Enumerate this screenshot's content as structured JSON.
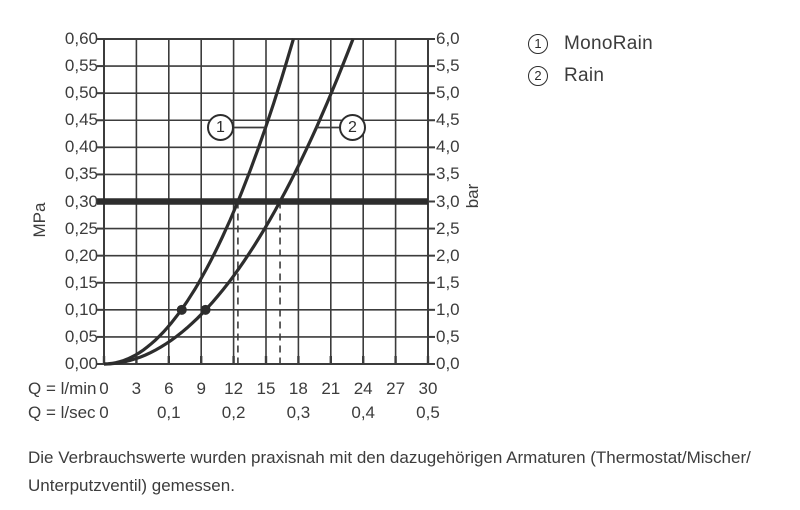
{
  "colors": {
    "ink": "#3c3c3c",
    "curve": "#2d2d2d",
    "background": "#ffffff"
  },
  "figure": {
    "y_left": {
      "title": "MPa",
      "ticks": [
        "0,60",
        "0,55",
        "0,50",
        "0,45",
        "0,40",
        "0,35",
        "0,30",
        "0,25",
        "0,20",
        "0,15",
        "0,10",
        "0,05",
        "0,00"
      ]
    },
    "y_right": {
      "title": "bar",
      "ticks": [
        "6,0",
        "5,5",
        "5,0",
        "4,5",
        "4,0",
        "3,5",
        "3,0",
        "2,5",
        "2,0",
        "1,5",
        "1,0",
        "0,5",
        "0,0"
      ]
    },
    "x_lmin": {
      "title": "Q = l/min",
      "ticks": [
        "0",
        "3",
        "6",
        "9",
        "12",
        "15",
        "18",
        "21",
        "24",
        "27",
        "30"
      ]
    },
    "x_lsec": {
      "title": "Q = l/sec",
      "ticks": [
        "0",
        "0,1",
        "0,2",
        "0,3",
        "0,4",
        "0,5"
      ]
    },
    "legend": [
      {
        "num": "1",
        "label": "MonoRain"
      },
      {
        "num": "2",
        "label": "Rain"
      }
    ],
    "curve_labels": [
      {
        "num": "1"
      },
      {
        "num": "2"
      }
    ],
    "caption_line1": "Die Verbrauchswerte wurden praxisnah mit den dazugehörigen Armaturen (Thermostat/Mischer/",
    "caption_line2": "Unterputzventil) gemessen."
  },
  "chart_data": {
    "type": "line",
    "title": "",
    "x_axis": {
      "label": "Q = l/min",
      "range": [
        0,
        30
      ],
      "ticks": [
        0,
        3,
        6,
        9,
        12,
        15,
        18,
        21,
        24,
        27,
        30
      ],
      "secondary_label": "Q = l/sec",
      "secondary_ticks": [
        0,
        0.1,
        0.2,
        0.3,
        0.4,
        0.5
      ]
    },
    "y_axis_left": {
      "label": "MPa",
      "range": [
        0,
        0.6
      ],
      "tick_step": 0.05
    },
    "y_axis_right": {
      "label": "bar",
      "range": [
        0,
        6
      ],
      "tick_step": 0.5
    },
    "grid": true,
    "legend_position": "top-right",
    "reference_pressure_mpa": 0.3,
    "dashed_guides_at_lmin": [
      12.4,
      16.3
    ],
    "series": [
      {
        "id": 1,
        "name": "MonoRain",
        "flow_at_3bar_lmin": 12.4,
        "marker": {
          "q_lmin": 7.2,
          "mpa": 0.1
        },
        "points_q_lmin_vs_mpa": [
          [
            0,
            0
          ],
          [
            3,
            0.018
          ],
          [
            6,
            0.07
          ],
          [
            7.2,
            0.1
          ],
          [
            9,
            0.158
          ],
          [
            12,
            0.281
          ],
          [
            12.4,
            0.3
          ],
          [
            15,
            0.439
          ],
          [
            17.5,
            0.6
          ]
        ]
      },
      {
        "id": 2,
        "name": "Rain",
        "flow_at_3bar_lmin": 16.3,
        "marker": {
          "q_lmin": 9.4,
          "mpa": 0.1
        },
        "points_q_lmin_vs_mpa": [
          [
            0,
            0
          ],
          [
            3,
            0.01
          ],
          [
            6,
            0.041
          ],
          [
            9.4,
            0.1
          ],
          [
            12,
            0.163
          ],
          [
            16.3,
            0.3
          ],
          [
            20,
            0.452
          ],
          [
            23.1,
            0.6
          ]
        ]
      }
    ]
  }
}
